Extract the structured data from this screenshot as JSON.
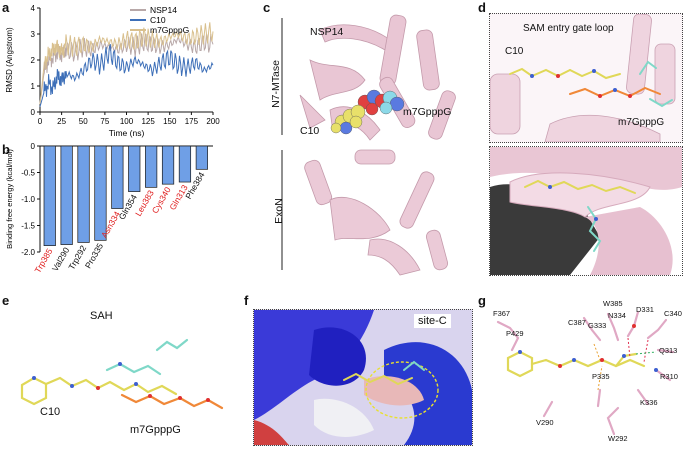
{
  "panels": {
    "a": "a",
    "b": "b",
    "c": "c",
    "d": "d",
    "e": "e",
    "f": "f",
    "g": "g"
  },
  "colors": {
    "nsp14": "#b8a8a8",
    "c10": "#3d6fb8",
    "m7gpppg": "#d9c08e",
    "bar": "#6f9fe6",
    "red_label": "#e02020",
    "protein_pink": "#e7c3d2",
    "ligand_yellow": "#e6e06a"
  },
  "chart_data": [
    {
      "type": "line",
      "title": "",
      "xlabel": "Time (ns)",
      "ylabel": "RMSD (Angstrom)",
      "xlim": [
        0,
        200
      ],
      "ylim": [
        0,
        4
      ],
      "xticks": [
        "0",
        "25",
        "50",
        "75",
        "100",
        "125",
        "150",
        "175",
        "200"
      ],
      "yticks": [
        "0",
        "1",
        "2",
        "3",
        "4"
      ],
      "legend_position": "top-right",
      "series": [
        {
          "name": "NSP14",
          "color": "#b8a8a8",
          "x": [
            0,
            5,
            10,
            15,
            20,
            25,
            30,
            40,
            50,
            60,
            70,
            80,
            90,
            100,
            110,
            120,
            130,
            140,
            150,
            160,
            170,
            180,
            190,
            200
          ],
          "y": [
            0.3,
            1.6,
            2.0,
            2.1,
            2.3,
            2.2,
            2.4,
            2.3,
            2.5,
            2.4,
            2.6,
            2.5,
            2.4,
            2.6,
            2.5,
            2.7,
            2.6,
            2.5,
            2.6,
            2.8,
            2.6,
            2.5,
            2.7,
            2.6
          ]
        },
        {
          "name": "C10",
          "color": "#3d6fb8",
          "x": [
            0,
            5,
            10,
            15,
            20,
            25,
            30,
            40,
            50,
            60,
            70,
            80,
            90,
            100,
            110,
            120,
            130,
            140,
            150,
            160,
            170,
            180,
            190,
            200
          ],
          "y": [
            0.2,
            0.8,
            1.1,
            0.9,
            1.4,
            1.2,
            1.5,
            1.3,
            1.6,
            2.0,
            1.8,
            2.3,
            1.9,
            1.7,
            2.0,
            1.8,
            1.6,
            1.9,
            2.1,
            1.8,
            1.7,
            1.9,
            1.6,
            1.8
          ]
        },
        {
          "name": "m7GpppG",
          "color": "#d9c08e",
          "x": [
            0,
            5,
            10,
            15,
            20,
            25,
            30,
            40,
            50,
            60,
            70,
            80,
            90,
            100,
            110,
            120,
            130,
            140,
            150,
            160,
            170,
            180,
            190,
            200
          ],
          "y": [
            0.3,
            1.9,
            2.2,
            2.4,
            2.5,
            2.3,
            2.6,
            2.5,
            2.6,
            2.5,
            2.8,
            2.7,
            2.6,
            2.8,
            2.7,
            2.9,
            2.8,
            2.7,
            2.9,
            3.0,
            2.8,
            2.9,
            3.0,
            3.1
          ]
        }
      ]
    },
    {
      "type": "bar",
      "title": "",
      "xlabel": "",
      "ylabel": "Binding free energy (kcal/mol)",
      "ylim": [
        -2.0,
        0
      ],
      "yticks": [
        "-2.0",
        "-1.5",
        "-1.0",
        "-0.5",
        "0"
      ],
      "categories": [
        "Trp385",
        "Val290",
        "Trp292",
        "Pro335",
        "Asn334",
        "Gln354",
        "Leu383",
        "Cys340",
        "Gln313",
        "Phe384"
      ],
      "category_colors": [
        "#e02020",
        "#111111",
        "#111111",
        "#111111",
        "#e02020",
        "#111111",
        "#e02020",
        "#e02020",
        "#e02020",
        "#111111"
      ],
      "values": [
        -1.88,
        -1.86,
        -1.82,
        -1.78,
        -1.18,
        -0.86,
        -0.78,
        -0.72,
        -0.68,
        -0.44
      ]
    }
  ],
  "panel_c": {
    "nsp14_label": "NSP14",
    "n7_label": "N7-MTase",
    "exon_label": "ExoN",
    "c10_label": "C10",
    "m7_label": "m7GpppG"
  },
  "panel_d": {
    "gate_label": "SAM entry gate loop",
    "c10_label": "C10",
    "m7_label": "m7GpppG"
  },
  "panel_e": {
    "sah_label": "SAH",
    "c10_label": "C10",
    "m7_label": "m7GpppG"
  },
  "panel_f": {
    "site_label": "site-C"
  },
  "panel_g": {
    "residues": [
      "F367",
      "P429",
      "C387",
      "G333",
      "W385",
      "N334",
      "D331",
      "C340",
      "Q313",
      "P335",
      "R310",
      "K336",
      "V290",
      "W292"
    ]
  }
}
